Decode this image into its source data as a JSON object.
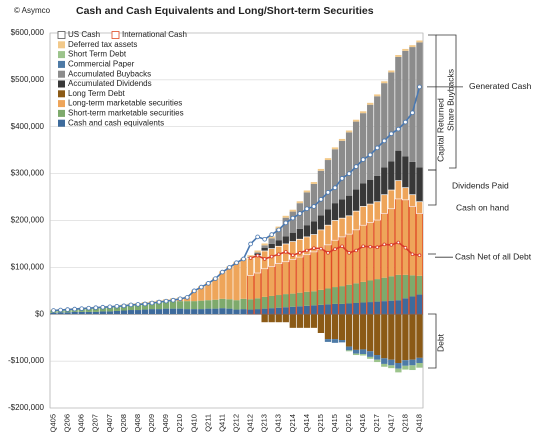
{
  "chart_data": {
    "type": "bar",
    "title": "Cash and Cash Equivalents and Long/Short-term Securities",
    "source": "© Asymco",
    "categories": [
      "Q405",
      null,
      "Q206",
      null,
      "Q406",
      null,
      "Q207",
      null,
      "Q407",
      null,
      "Q208",
      null,
      "Q408",
      null,
      "Q209",
      null,
      "Q409",
      null,
      "Q210",
      null,
      "Q410",
      null,
      "Q211",
      null,
      "Q411",
      null,
      "Q212",
      null,
      "Q412",
      null,
      "Q213",
      null,
      "Q413",
      null,
      "Q214",
      null,
      "Q414",
      null,
      "Q215",
      null,
      "Q415",
      null,
      "Q216",
      null,
      "Q416",
      null,
      "Q217",
      null,
      "Q417",
      null,
      "Q218",
      null,
      "Q418"
    ],
    "ylim": [
      -200000,
      600000
    ],
    "yticks": [
      {
        "value": -200000,
        "label": "-$200,000"
      },
      {
        "value": -100000,
        "label": "-$100,000"
      },
      {
        "value": 0,
        "label": "$0"
      },
      {
        "value": 100000,
        "label": "$100,000"
      },
      {
        "value": 200000,
        "label": "$200,000"
      },
      {
        "value": 300000,
        "label": "$300,000"
      },
      {
        "value": 400000,
        "label": "$400,000"
      },
      {
        "value": 500000,
        "label": "$500,000"
      },
      {
        "value": 600000,
        "label": "$600,000"
      }
    ],
    "grid": true,
    "series": [
      {
        "name": "US Cash",
        "kind": "outline",
        "color": "#ffffff",
        "values": [
          null,
          null,
          null,
          null,
          null,
          null,
          null,
          null,
          null,
          null,
          null,
          null,
          null,
          null,
          null,
          null,
          null,
          null,
          null,
          null,
          null,
          null,
          null,
          null,
          null,
          null,
          null,
          null,
          37000,
          37000,
          38000,
          38000,
          37000,
          38000,
          38000,
          38000,
          38000,
          37000,
          42000,
          42000,
          42000,
          40000,
          39000,
          40000,
          40000,
          39000,
          39000,
          40000,
          40000,
          39000,
          26000,
          25000,
          25000
        ]
      },
      {
        "name": "International Cash",
        "kind": "outline",
        "color": "#e04a24",
        "values": [
          null,
          null,
          null,
          null,
          null,
          null,
          null,
          null,
          null,
          null,
          null,
          null,
          null,
          null,
          null,
          null,
          null,
          null,
          null,
          null,
          null,
          null,
          null,
          null,
          null,
          null,
          null,
          null,
          83000,
          88000,
          97000,
          102000,
          108000,
          112000,
          117000,
          122000,
          127000,
          133000,
          138000,
          148000,
          158000,
          165000,
          171000,
          180000,
          190000,
          196000,
          201000,
          215000,
          225000,
          246000,
          244000,
          230000,
          215000
        ]
      },
      {
        "name": "Deferred tax assets",
        "kind": "bar",
        "color": "#f2c98a",
        "values": [
          2000,
          2000,
          2000,
          2000,
          2000,
          2000,
          2000,
          2000,
          2000,
          2000,
          2000,
          2000,
          2000,
          2000,
          2000,
          2000,
          2000,
          2000,
          2000,
          2000,
          2000,
          2000,
          2000,
          2000,
          2000,
          2000,
          2000,
          2000,
          4000,
          4000,
          4000,
          4000,
          4000,
          4000,
          4000,
          4000,
          4000,
          4000,
          4000,
          4000,
          4000,
          4000,
          4000,
          4000,
          4000,
          4000,
          4000,
          4000,
          4000,
          4000,
          4000,
          4000,
          4000
        ]
      },
      {
        "name": "Short Term Debt",
        "kind": "bar",
        "color": "#9cc48c",
        "values": [
          0,
          0,
          0,
          0,
          0,
          0,
          0,
          0,
          0,
          0,
          0,
          0,
          0,
          0,
          0,
          0,
          0,
          0,
          0,
          0,
          0,
          0,
          0,
          0,
          0,
          0,
          0,
          0,
          0,
          0,
          0,
          0,
          0,
          0,
          0,
          0,
          0,
          0,
          0,
          0,
          0,
          0,
          -2000,
          -3000,
          -3000,
          -4000,
          -5000,
          -6000,
          -6000,
          -8000,
          -8000,
          -10000,
          -10000
        ]
      },
      {
        "name": "Commercial Paper",
        "kind": "bar",
        "color": "#4d7aa6",
        "values": [
          0,
          0,
          0,
          0,
          0,
          0,
          0,
          0,
          0,
          0,
          0,
          0,
          0,
          0,
          0,
          0,
          0,
          0,
          0,
          0,
          0,
          0,
          0,
          0,
          0,
          0,
          0,
          0,
          0,
          0,
          0,
          0,
          0,
          0,
          0,
          0,
          0,
          0,
          0,
          -6000,
          -8000,
          -5000,
          -8000,
          -8000,
          -10000,
          -12000,
          -10000,
          -12000,
          -12000,
          -12000,
          -12000,
          -12000,
          -11000
        ]
      },
      {
        "name": "Accumulated Buybacks",
        "kind": "bar",
        "color": "#8c8c8c",
        "values": [
          0,
          0,
          0,
          0,
          0,
          0,
          0,
          0,
          0,
          0,
          0,
          0,
          0,
          0,
          0,
          0,
          0,
          0,
          0,
          0,
          0,
          0,
          0,
          0,
          0,
          0,
          0,
          0,
          0,
          2000,
          5000,
          12000,
          25000,
          40000,
          45000,
          55000,
          70000,
          80000,
          95000,
          105000,
          115000,
          125000,
          135000,
          145000,
          150000,
          160000,
          170000,
          180000,
          190000,
          200000,
          225000,
          245000,
          267000
        ]
      },
      {
        "name": "Accumulated Dividends",
        "kind": "bar",
        "color": "#383838",
        "values": [
          0,
          0,
          0,
          0,
          0,
          0,
          0,
          0,
          0,
          0,
          0,
          0,
          0,
          0,
          0,
          0,
          0,
          0,
          0,
          0,
          0,
          0,
          0,
          0,
          0,
          0,
          0,
          0,
          2000,
          5000,
          7000,
          10000,
          13000,
          16000,
          19000,
          22000,
          25000,
          28000,
          31000,
          34000,
          37000,
          40000,
          43000,
          46000,
          49000,
          52000,
          55000,
          58000,
          61000,
          64000,
          67000,
          70000,
          73000
        ]
      },
      {
        "name": "Long Term Debt",
        "kind": "bar",
        "color": "#8b5a16",
        "values": [
          0,
          0,
          0,
          0,
          0,
          0,
          0,
          0,
          0,
          0,
          0,
          0,
          0,
          0,
          0,
          0,
          0,
          0,
          0,
          0,
          0,
          0,
          0,
          0,
          0,
          0,
          0,
          0,
          0,
          0,
          -17000,
          -17000,
          -17000,
          -17000,
          -29000,
          -29000,
          -29000,
          -29000,
          -40000,
          -53000,
          -53000,
          -55000,
          -69000,
          -76000,
          -75000,
          -79000,
          -87000,
          -94000,
          -97000,
          -104000,
          -98000,
          -97000,
          -93000
        ]
      },
      {
        "name": "Long-term marketable securities",
        "kind": "bar",
        "color": "#eea55a",
        "values": [
          0,
          0,
          0,
          0,
          0,
          1000,
          1000,
          1000,
          1000,
          0,
          0,
          0,
          0,
          0,
          1000,
          2000,
          3000,
          4000,
          6000,
          8000,
          22000,
          29000,
          36000,
          45000,
          57000,
          68000,
          80000,
          85000,
          88000,
          91000,
          98000,
          101000,
          104000,
          107000,
          111000,
          114000,
          117000,
          121000,
          128000,
          135000,
          142000,
          145000,
          147000,
          154000,
          161000,
          163000,
          165000,
          177000,
          184000,
          201000,
          186000,
          172000,
          158000
        ]
      },
      {
        "name": "Short-term marketable securities",
        "kind": "bar",
        "color": "#7eaa6c",
        "values": [
          5000,
          5000,
          6000,
          6000,
          7000,
          7000,
          8000,
          8000,
          9000,
          10000,
          11000,
          12000,
          13000,
          14000,
          14000,
          15000,
          15000,
          16000,
          16000,
          17000,
          17000,
          18000,
          18000,
          19000,
          20000,
          20000,
          20000,
          22000,
          22000,
          23000,
          25000,
          26000,
          27000,
          28000,
          28000,
          29000,
          30000,
          30000,
          32000,
          34000,
          36000,
          38000,
          40000,
          42000,
          44000,
          46000,
          48000,
          50000,
          52000,
          54000,
          50000,
          45000,
          40000
        ]
      },
      {
        "name": "Cash and cash equivalents",
        "kind": "bar",
        "color": "#3e6b9c",
        "values": [
          3000,
          4000,
          4000,
          5000,
          5000,
          5000,
          5000,
          6000,
          6000,
          7000,
          8000,
          9000,
          9000,
          10000,
          11000,
          11000,
          12000,
          12000,
          12000,
          11000,
          11000,
          11000,
          12000,
          12000,
          13000,
          12000,
          10000,
          11000,
          10000,
          11000,
          12000,
          13000,
          14000,
          15000,
          16000,
          17000,
          18000,
          19000,
          20000,
          21000,
          22000,
          22000,
          23000,
          24000,
          25000,
          26000,
          27000,
          28000,
          29000,
          30000,
          34000,
          38000,
          42000
        ]
      },
      {
        "name": "Generated Cash",
        "kind": "line",
        "color": "#4a78b0",
        "values": [
          8000,
          9000,
          10000,
          11000,
          12000,
          13000,
          14000,
          15000,
          16000,
          17000,
          18000,
          20000,
          21000,
          22000,
          24000,
          26000,
          28000,
          30000,
          33000,
          36000,
          50000,
          58000,
          66000,
          76000,
          90000,
          100000,
          110000,
          118000,
          150000,
          165000,
          160000,
          170000,
          180000,
          195000,
          205000,
          215000,
          225000,
          230000,
          245000,
          260000,
          270000,
          290000,
          300000,
          315000,
          330000,
          340000,
          355000,
          370000,
          385000,
          395000,
          410000,
          430000,
          485000
        ]
      },
      {
        "name": "Cash Net of all Debt",
        "kind": "line",
        "color": "#d83a2a",
        "values": [
          null,
          null,
          null,
          null,
          null,
          null,
          null,
          null,
          null,
          null,
          null,
          null,
          null,
          null,
          null,
          null,
          null,
          null,
          null,
          null,
          null,
          null,
          null,
          null,
          null,
          null,
          null,
          null,
          120000,
          125000,
          118000,
          123000,
          128000,
          133000,
          126000,
          131000,
          136000,
          141000,
          140000,
          131000,
          139000,
          145000,
          131000,
          136000,
          145000,
          144000,
          143000,
          149000,
          148000,
          153000,
          142000,
          128000,
          126000
        ]
      }
    ],
    "annotations": [
      "Capital Returned",
      "Share Buybacks",
      "Dividends Paid",
      "Cash on hand",
      "Debt"
    ]
  }
}
